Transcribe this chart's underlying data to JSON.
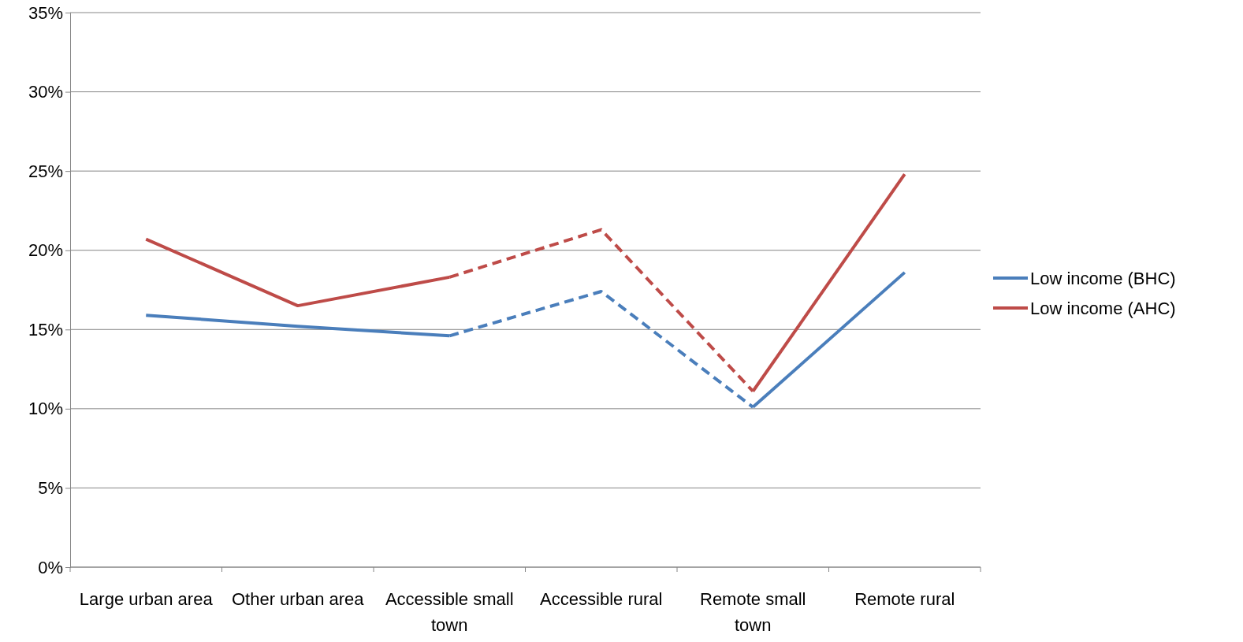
{
  "chart_data": {
    "type": "line",
    "categories": [
      "Large urban area",
      "Other urban area",
      "Accessible small town",
      "Accessible rural",
      "Remote small town",
      "Remote rural"
    ],
    "ylim": [
      0,
      35
    ],
    "yticks": [
      {
        "value": 0,
        "label": "0%"
      },
      {
        "value": 5,
        "label": "5%"
      },
      {
        "value": 10,
        "label": "10%"
      },
      {
        "value": 15,
        "label": "15%"
      },
      {
        "value": 20,
        "label": "20%"
      },
      {
        "value": 25,
        "label": "25%"
      },
      {
        "value": 30,
        "label": "30%"
      },
      {
        "value": 35,
        "label": "35%"
      }
    ],
    "grid": "y",
    "legend": "right",
    "marker": "none",
    "series": [
      {
        "name": "Low income (BHC)",
        "color": "#4a7ebb",
        "line_style": "solid",
        "values": [
          15.9,
          15.2,
          14.6,
          null,
          null,
          null
        ]
      },
      {
        "color": "#4a7ebb",
        "line_style": "dashed",
        "values": [
          null,
          null,
          14.6,
          17.4,
          10.1,
          null
        ]
      },
      {
        "color": "#4a7ebb",
        "line_style": "solid",
        "values": [
          null,
          null,
          null,
          null,
          10.1,
          18.6
        ]
      },
      {
        "name": "Low income (AHC)",
        "color": "#be4b48",
        "line_style": "solid",
        "values": [
          20.7,
          16.5,
          18.3,
          null,
          null,
          null
        ]
      },
      {
        "color": "#be4b48",
        "line_style": "dashed",
        "values": [
          null,
          null,
          18.3,
          21.3,
          11.1,
          null
        ]
      },
      {
        "color": "#be4b48",
        "line_style": "solid",
        "values": [
          null,
          null,
          null,
          null,
          11.1,
          24.8
        ]
      }
    ]
  }
}
